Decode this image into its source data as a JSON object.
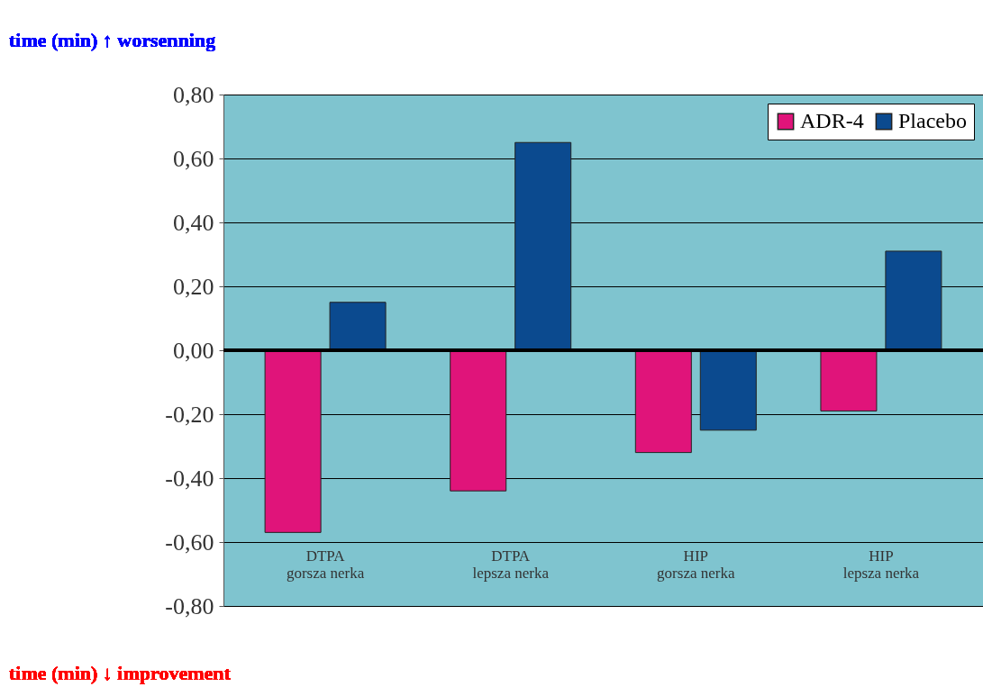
{
  "chart_data": {
    "type": "bar",
    "categories": [
      "DTPA\ngorsza nerka",
      "DTPA\nlepsza nerka",
      "HIP\ngorsza nerka",
      "HIP\nlepsza nerka"
    ],
    "series": [
      {
        "name": "ADR-4",
        "color": "#e0147a",
        "values": [
          -0.57,
          -0.44,
          -0.32,
          -0.19
        ]
      },
      {
        "name": "Placebo",
        "color": "#0b4a8f",
        "values": [
          0.15,
          0.65,
          -0.25,
          0.31
        ]
      }
    ],
    "ylim": [
      -0.8,
      0.8
    ],
    "yticks": [
      {
        "value": -0.8,
        "label": "-0,80"
      },
      {
        "value": -0.6,
        "label": "-0,60"
      },
      {
        "value": -0.4,
        "label": "-0,40"
      },
      {
        "value": -0.2,
        "label": "-0,20"
      },
      {
        "value": 0,
        "label": "0,00"
      },
      {
        "value": 0.2,
        "label": "0,20"
      },
      {
        "value": 0.4,
        "label": "0,40"
      },
      {
        "value": 0.6,
        "label": "0,60"
      },
      {
        "value": 0.8,
        "label": "0,80"
      }
    ],
    "grid": "y",
    "legend": "top right",
    "ref_lines": [
      {
        "axis": "y",
        "value": 0,
        "color": "#000000"
      }
    ],
    "annotations": [
      "time (min) ↑ worsenning",
      "time (min) ↓ improvement"
    ]
  }
}
